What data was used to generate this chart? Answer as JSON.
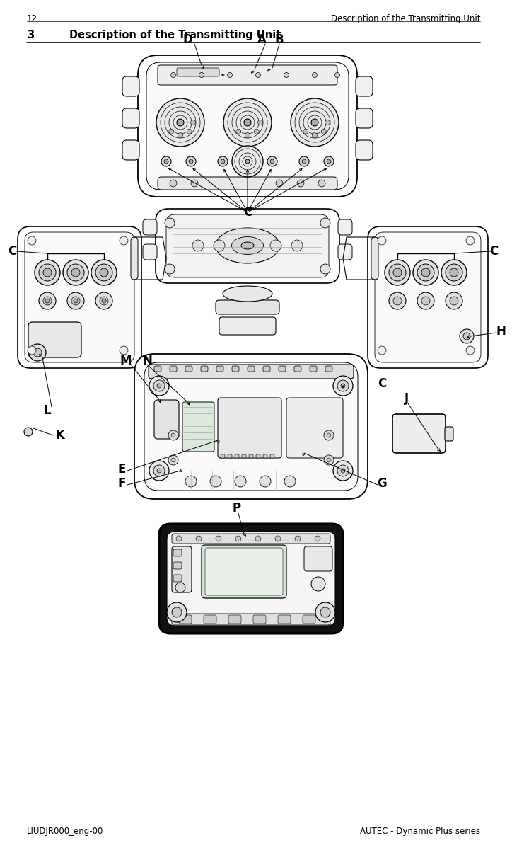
{
  "page_number": "12",
  "header_right": "Description of the Transmitting Unit",
  "section_number": "3",
  "section_title": "Description of the Transmitting Unit",
  "footer_left": "LIUDJR000_eng-00",
  "footer_right": "AUTEC - Dynamic Plus series",
  "bg_color": "#ffffff",
  "text_color": "#000000",
  "title_fontsize": 10.5,
  "header_fontsize": 8.5,
  "footer_fontsize": 8.5,
  "label_fontsize": 11
}
